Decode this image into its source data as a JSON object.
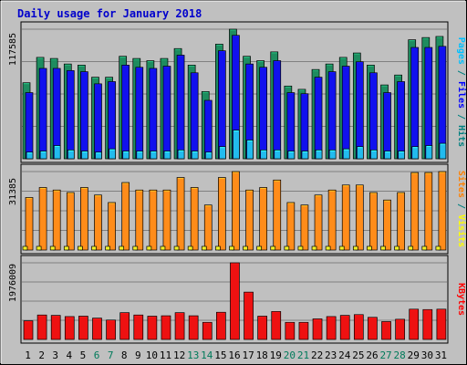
{
  "chart_data": {
    "type": "bar",
    "title": "Daily usage for January 2018",
    "categories": [
      "1",
      "2",
      "3",
      "4",
      "5",
      "6",
      "7",
      "8",
      "9",
      "10",
      "11",
      "12",
      "13",
      "14",
      "15",
      "16",
      "17",
      "18",
      "19",
      "20",
      "21",
      "22",
      "23",
      "24",
      "25",
      "26",
      "27",
      "28",
      "29",
      "30",
      "31"
    ],
    "weekend_days": [
      "6",
      "7",
      "13",
      "14",
      "20",
      "21",
      "27",
      "28"
    ],
    "grid": true,
    "legend": "right-vertical",
    "panels": [
      {
        "key": "top",
        "ymax_label": "117585",
        "ylim": [
          0,
          117585
        ],
        "legend": [
          {
            "text": "Pages",
            "color": "#00c0ff"
          },
          {
            "text": " / ",
            "color": "#008080"
          },
          {
            "text": "Files",
            "color": "#0000ff"
          },
          {
            "text": " / ",
            "color": "#008080"
          },
          {
            "text": "Hits",
            "color": "#008080"
          }
        ],
        "series": [
          {
            "name": "Hits",
            "color": "#1e8c5f",
            "values": [
              69000,
              92000,
              91000,
              86000,
              85000,
              74000,
              74000,
              93000,
              91000,
              89000,
              91000,
              100000,
              85000,
              61000,
              104000,
              117585,
              93000,
              89000,
              97000,
              66000,
              63000,
              81000,
              86000,
              92000,
              96000,
              85000,
              67000,
              76000,
              108000,
              110000,
              111000
            ]
          },
          {
            "name": "Files",
            "color": "#1111ee",
            "values": [
              60000,
              82000,
              82000,
              80000,
              79000,
              68000,
              70000,
              85000,
              83000,
              82000,
              84000,
              94000,
              78000,
              53000,
              98000,
              112000,
              86000,
              83000,
              89000,
              60000,
              59000,
              74000,
              79000,
              84000,
              88000,
              78000,
              60000,
              70000,
              101000,
              101000,
              102000
            ]
          },
          {
            "name": "Pages",
            "color": "#22bbee",
            "values": [
              6000,
              7000,
              12000,
              8000,
              7000,
              6000,
              9000,
              7000,
              7000,
              7000,
              7000,
              8000,
              7000,
              6000,
              11000,
              26000,
              17000,
              8000,
              8000,
              7000,
              7000,
              8000,
              8000,
              9000,
              11000,
              8000,
              7000,
              7000,
              11000,
              12000,
              14000
            ]
          }
        ]
      },
      {
        "key": "middle",
        "ymax_label": "31385",
        "ylim": [
          0,
          31385
        ],
        "legend": [
          {
            "text": "Sites",
            "color": "#ff8000"
          },
          {
            "text": " / ",
            "color": "#008080"
          },
          {
            "text": "Visits",
            "color": "#ffff00"
          }
        ],
        "series": [
          {
            "name": "Sites",
            "color": "#ff8c1a",
            "values": [
              21000,
              25000,
              24000,
              23000,
              25000,
              22000,
              19000,
              27000,
              24000,
              24000,
              24000,
              29000,
              25000,
              18000,
              29000,
              31385,
              24000,
              25000,
              28000,
              19000,
              18000,
              22000,
              24000,
              26000,
              26000,
              23000,
              20000,
              23000,
              31000,
              31000,
              31385
            ]
          },
          {
            "name": "Visits",
            "color": "#eeee22",
            "values": [
              600,
              600,
              600,
              600,
              600,
              600,
              600,
              600,
              600,
              600,
              600,
              600,
              600,
              600,
              600,
              600,
              600,
              600,
              600,
              600,
              600,
              600,
              600,
              600,
              600,
              600,
              600,
              600,
              600,
              600,
              600
            ]
          }
        ]
      },
      {
        "key": "bottom",
        "ymax_label": "1976009",
        "ylim": [
          0,
          1976009
        ],
        "legend": [
          {
            "text": "KBytes",
            "color": "#ff0000"
          }
        ],
        "series": [
          {
            "name": "KBytes",
            "color": "#ee1111",
            "values": [
              480000,
              630000,
              620000,
              590000,
              600000,
              550000,
              500000,
              690000,
              630000,
              600000,
              610000,
              690000,
              610000,
              440000,
              700000,
              1976009,
              1220000,
              600000,
              720000,
              440000,
              440000,
              530000,
              590000,
              620000,
              640000,
              570000,
              460000,
              520000,
              780000,
              770000,
              780000
            ]
          }
        ]
      }
    ]
  }
}
